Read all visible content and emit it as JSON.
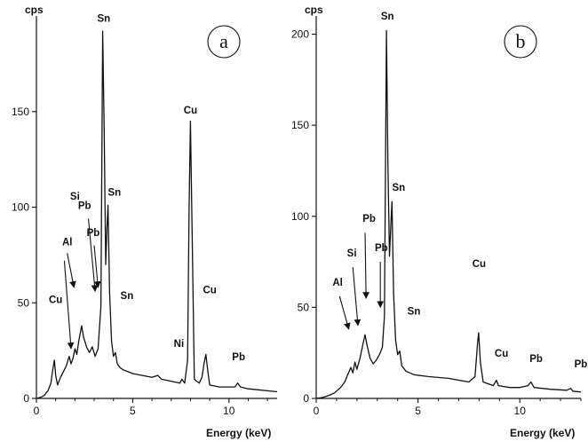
{
  "chart_data": [
    {
      "type": "line",
      "panel": "a",
      "xlabel": "Energy (keV)",
      "ylabel": "cps",
      "xlim": [
        0,
        12.5
      ],
      "ylim": [
        0,
        200
      ],
      "x_ticks": [
        0,
        5,
        10
      ],
      "y_ticks": [
        0,
        50,
        100,
        150
      ],
      "x_tick_labels": [
        "0",
        "5",
        "10"
      ],
      "y_tick_labels": [
        "0",
        "50",
        "100",
        "150"
      ],
      "grid": false,
      "legend": "none",
      "series": [
        {
          "points": [
            [
              0,
              0
            ],
            [
              0.2,
              0.5
            ],
            [
              0.4,
              1.5
            ],
            [
              0.6,
              4
            ],
            [
              0.75,
              8
            ],
            [
              0.85,
              15
            ],
            [
              0.93,
              20
            ],
            [
              1.0,
              12
            ],
            [
              1.1,
              7
            ],
            [
              1.25,
              11
            ],
            [
              1.4,
              14
            ],
            [
              1.55,
              17
            ],
            [
              1.7,
              22
            ],
            [
              1.8,
              18
            ],
            [
              1.9,
              21
            ],
            [
              2.0,
              26
            ],
            [
              2.1,
              23
            ],
            [
              2.2,
              30
            ],
            [
              2.35,
              38
            ],
            [
              2.45,
              32
            ],
            [
              2.6,
              27
            ],
            [
              2.75,
              24
            ],
            [
              2.9,
              27
            ],
            [
              3.05,
              22
            ],
            [
              3.2,
              26
            ],
            [
              3.35,
              48
            ],
            [
              3.44,
              192
            ],
            [
              3.52,
              140
            ],
            [
              3.6,
              70
            ],
            [
              3.66,
              88
            ],
            [
              3.72,
              101
            ],
            [
              3.8,
              55
            ],
            [
              3.9,
              30
            ],
            [
              4.0,
              22
            ],
            [
              4.1,
              24
            ],
            [
              4.2,
              18
            ],
            [
              4.35,
              16
            ],
            [
              4.5,
              15
            ],
            [
              5.0,
              13
            ],
            [
              5.5,
              12
            ],
            [
              6.0,
              11
            ],
            [
              6.3,
              12
            ],
            [
              6.5,
              10
            ],
            [
              7.0,
              9
            ],
            [
              7.45,
              8
            ],
            [
              7.55,
              10
            ],
            [
              7.7,
              8
            ],
            [
              7.85,
              20
            ],
            [
              7.93,
              100
            ],
            [
              8.0,
              145
            ],
            [
              8.08,
              90
            ],
            [
              8.2,
              10
            ],
            [
              8.45,
              8
            ],
            [
              8.6,
              11
            ],
            [
              8.7,
              18
            ],
            [
              8.8,
              23
            ],
            [
              8.9,
              14
            ],
            [
              9.0,
              7
            ],
            [
              9.5,
              6
            ],
            [
              10.0,
              6
            ],
            [
              10.3,
              6
            ],
            [
              10.45,
              8
            ],
            [
              10.6,
              6
            ],
            [
              11.0,
              5
            ],
            [
              11.5,
              4.5
            ],
            [
              12.0,
              4
            ],
            [
              12.5,
              3.5
            ]
          ]
        }
      ],
      "annotations": [
        {
          "text": "Cu",
          "x": 1.0,
          "y": 50
        },
        {
          "text": "Al",
          "x": 1.6,
          "y": 80
        },
        {
          "text": "Si",
          "x": 2.0,
          "y": 104
        },
        {
          "text": "Pb",
          "x": 2.5,
          "y": 99
        },
        {
          "text": "Pb",
          "x": 2.95,
          "y": 85
        },
        {
          "text": "Sn",
          "x": 3.5,
          "y": 197
        },
        {
          "text": "Sn",
          "x": 4.05,
          "y": 106
        },
        {
          "text": "Sn",
          "x": 4.7,
          "y": 52
        },
        {
          "text": "Cu",
          "x": 8.0,
          "y": 149
        },
        {
          "text": "Ni",
          "x": 7.4,
          "y": 27
        },
        {
          "text": "Cu",
          "x": 9.0,
          "y": 55
        },
        {
          "text": "Pb",
          "x": 10.5,
          "y": 20
        }
      ],
      "arrows": [
        {
          "from": [
            1.6,
            76
          ],
          "to": [
            1.95,
            58
          ]
        },
        {
          "from": [
            1.45,
            72
          ],
          "to": [
            1.8,
            26
          ]
        },
        {
          "from": [
            2.7,
            94
          ],
          "to": [
            3.05,
            56
          ]
        },
        {
          "from": [
            3.0,
            80
          ],
          "to": [
            3.2,
            58
          ]
        }
      ]
    },
    {
      "type": "line",
      "panel": "b",
      "xlabel": "Energy (keV)",
      "ylabel": "cps",
      "xlim": [
        0,
        13
      ],
      "ylim": [
        0,
        210
      ],
      "x_ticks": [
        0,
        5,
        10
      ],
      "y_ticks": [
        0,
        50,
        100,
        150,
        200
      ],
      "x_tick_labels": [
        "0",
        "5",
        "10"
      ],
      "y_tick_labels": [
        "0",
        "50",
        "100",
        "150",
        "200"
      ],
      "grid": false,
      "legend": "none",
      "series": [
        {
          "points": [
            [
              0,
              0
            ],
            [
              0.3,
              0.5
            ],
            [
              0.6,
              1.5
            ],
            [
              0.9,
              3
            ],
            [
              1.2,
              6
            ],
            [
              1.4,
              9
            ],
            [
              1.55,
              13
            ],
            [
              1.7,
              17
            ],
            [
              1.8,
              14
            ],
            [
              1.9,
              20
            ],
            [
              2.0,
              16
            ],
            [
              2.15,
              22
            ],
            [
              2.3,
              30
            ],
            [
              2.4,
              35
            ],
            [
              2.5,
              29
            ],
            [
              2.65,
              22
            ],
            [
              2.8,
              19
            ],
            [
              2.95,
              21
            ],
            [
              3.1,
              24
            ],
            [
              3.25,
              28
            ],
            [
              3.35,
              45
            ],
            [
              3.45,
              202
            ],
            [
              3.52,
              130
            ],
            [
              3.6,
              78
            ],
            [
              3.67,
              96
            ],
            [
              3.72,
              108
            ],
            [
              3.8,
              58
            ],
            [
              3.9,
              32
            ],
            [
              4.0,
              24
            ],
            [
              4.1,
              26
            ],
            [
              4.2,
              18
            ],
            [
              4.4,
              15
            ],
            [
              4.8,
              13
            ],
            [
              5.5,
              12
            ],
            [
              6.5,
              11
            ],
            [
              7.0,
              10
            ],
            [
              7.5,
              9
            ],
            [
              7.8,
              12
            ],
            [
              7.92,
              30
            ],
            [
              7.98,
              36
            ],
            [
              8.06,
              20
            ],
            [
              8.2,
              9
            ],
            [
              8.7,
              7
            ],
            [
              8.85,
              10
            ],
            [
              8.95,
              7
            ],
            [
              9.5,
              6
            ],
            [
              10.0,
              6
            ],
            [
              10.4,
              7
            ],
            [
              10.55,
              9
            ],
            [
              10.7,
              6
            ],
            [
              11.5,
              5
            ],
            [
              12.3,
              4.5
            ],
            [
              12.5,
              5.5
            ],
            [
              12.6,
              4
            ],
            [
              13.0,
              3.5
            ]
          ]
        }
      ],
      "annotations": [
        {
          "text": "Al",
          "x": 1.05,
          "y": 62
        },
        {
          "text": "Si",
          "x": 1.75,
          "y": 78
        },
        {
          "text": "Pb",
          "x": 2.6,
          "y": 97
        },
        {
          "text": "Pb",
          "x": 3.2,
          "y": 81
        },
        {
          "text": "Sn",
          "x": 3.5,
          "y": 208
        },
        {
          "text": "Sn",
          "x": 4.05,
          "y": 114
        },
        {
          "text": "Sn",
          "x": 4.8,
          "y": 46
        },
        {
          "text": "Cu",
          "x": 8.0,
          "y": 72
        },
        {
          "text": "Cu",
          "x": 9.1,
          "y": 23
        },
        {
          "text": "Pb",
          "x": 10.8,
          "y": 20
        },
        {
          "text": "Pb",
          "x": 13.0,
          "y": 17
        }
      ],
      "arrows": [
        {
          "from": [
            1.15,
            56
          ],
          "to": [
            1.6,
            38
          ]
        },
        {
          "from": [
            1.8,
            72
          ],
          "to": [
            2.05,
            40
          ]
        },
        {
          "from": [
            2.4,
            91
          ],
          "to": [
            2.45,
            55
          ]
        },
        {
          "from": [
            3.15,
            75
          ],
          "to": [
            3.15,
            50
          ]
        }
      ]
    }
  ],
  "panels": {
    "a": {
      "letter": "a"
    },
    "b": {
      "letter": "b"
    }
  }
}
